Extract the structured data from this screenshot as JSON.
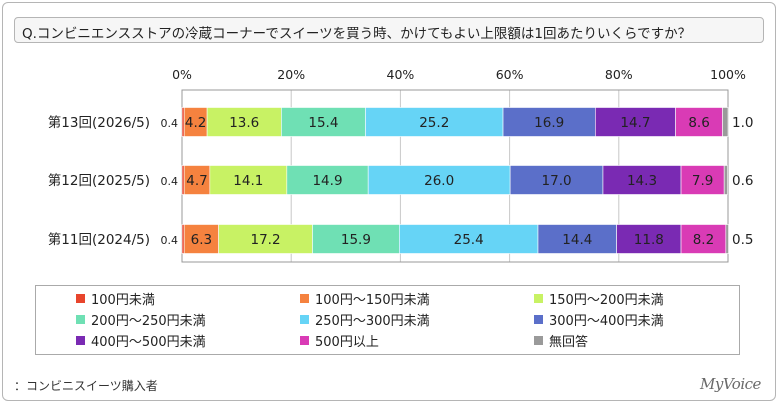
{
  "question": "Q.コンビニエンスストアの冷蔵コーナーでスイーツを買う時、かけてもよい上限額は1回あたりいくらですか？",
  "note": "：コンビニスイーツ購入者",
  "logo": "MyVoice",
  "chart_data": {
    "type": "bar",
    "orientation": "horizontal",
    "stacked": "100%",
    "axis_ticks": [
      "0%",
      "20%",
      "40%",
      "60%",
      "80%",
      "100%"
    ],
    "xlim": [
      0,
      100
    ],
    "grid": true,
    "legend_position": "bottom",
    "categories": [
      "第13回(2026/5)",
      "第12回(2025/5)",
      "第11回(2024/5)"
    ],
    "series": [
      {
        "name": "100円未満",
        "color": "#e8452c",
        "values": [
          0.4,
          0.4,
          0.4
        ]
      },
      {
        "name": "100円～150円未満",
        "color": "#f5823f",
        "values": [
          4.2,
          4.7,
          6.3
        ]
      },
      {
        "name": "150円～200円未満",
        "color": "#c8f264",
        "values": [
          13.6,
          14.1,
          17.2
        ]
      },
      {
        "name": "200円～250円未満",
        "color": "#6fe0b4",
        "values": [
          15.4,
          14.9,
          15.9
        ]
      },
      {
        "name": "250円～300円未満",
        "color": "#66d4f6",
        "values": [
          25.2,
          26.0,
          25.4
        ]
      },
      {
        "name": "300円～400円未満",
        "color": "#5b6fc9",
        "values": [
          16.9,
          17.0,
          14.4
        ]
      },
      {
        "name": "400円～500円未満",
        "color": "#7a2ab3",
        "values": [
          14.7,
          14.3,
          11.8
        ]
      },
      {
        "name": "500円以上",
        "color": "#d93bb5",
        "values": [
          8.6,
          7.9,
          8.2
        ]
      },
      {
        "name": "無回答",
        "color": "#9a9a9a",
        "values": [
          1.0,
          0.6,
          0.5
        ]
      }
    ],
    "value_labels": [
      [
        "0.4",
        "4.2",
        "13.6",
        "15.4",
        "25.2",
        "16.9",
        "14.7",
        "8.6",
        "1.0"
      ],
      [
        "0.4",
        "4.7",
        "14.1",
        "14.9",
        "26.0",
        "17.0",
        "14.3",
        "7.9",
        "0.6"
      ],
      [
        "0.4",
        "6.3",
        "17.2",
        "15.9",
        "25.4",
        "14.4",
        "11.8",
        "8.2",
        "0.5"
      ]
    ]
  }
}
